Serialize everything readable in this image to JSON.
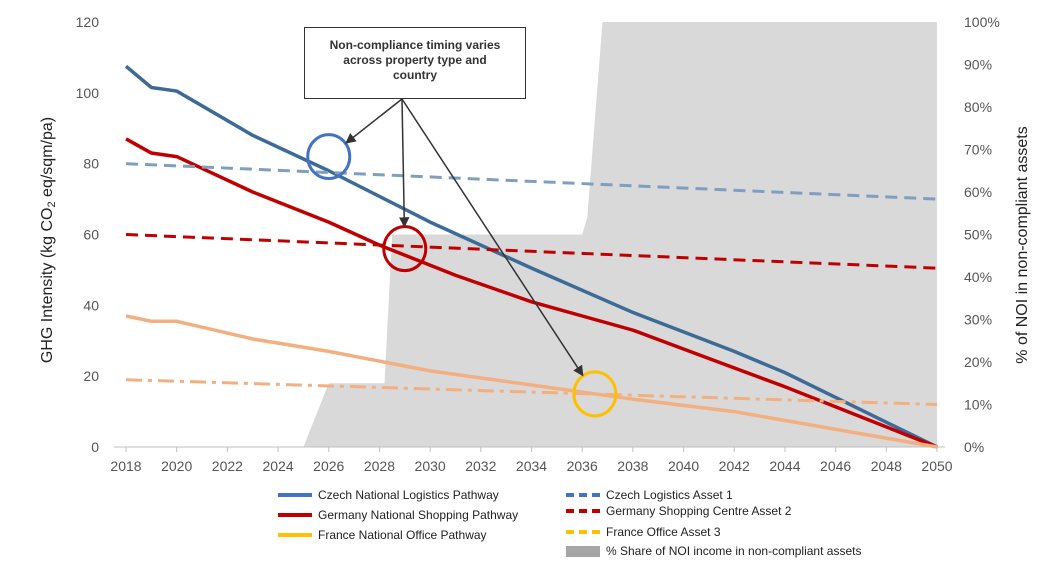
{
  "chart_data": {
    "type": "line",
    "ylabel_left_parts": [
      "GHG Intensity (kg CO",
      "2",
      " eq/sqm/pa)"
    ],
    "ylabel_right": "% of NOI in non-compliant assets",
    "x_ticks": [
      "2018",
      "2020",
      "2022",
      "2024",
      "2026",
      "2028",
      "2030",
      "2032",
      "2034",
      "2036",
      "2038",
      "2040",
      "2042",
      "2044",
      "2046",
      "2048",
      "2050"
    ],
    "y_ticks_left": [
      "0",
      "20",
      "40",
      "60",
      "80",
      "100",
      "120"
    ],
    "y_ticks_right": [
      "0%",
      "10%",
      "20%",
      "30%",
      "40%",
      "50%",
      "60%",
      "70%",
      "80%",
      "90%",
      "100%"
    ],
    "ylim_left": [
      0,
      120
    ],
    "ylim_right": [
      0,
      100
    ],
    "xlim": [
      2018,
      2050
    ],
    "annotation": [
      "Non-compliance timing varies",
      "across property type and",
      "country"
    ],
    "series": [
      {
        "name": "Czech National Logistics Pathway",
        "axis": "left",
        "style": "solid",
        "color": "#3d6a96",
        "x": [
          2018,
          2019,
          2020,
          2023,
          2026,
          2030,
          2034,
          2038,
          2042,
          2044,
          2050
        ],
        "y": [
          107.5,
          101.5,
          100.5,
          88,
          78,
          63.5,
          50.5,
          38,
          27,
          21,
          0
        ]
      },
      {
        "name": "Germany National Shopping Pathway",
        "axis": "left",
        "style": "solid",
        "color": "#c00000",
        "x": [
          2018,
          2019,
          2020,
          2023,
          2026,
          2028,
          2031,
          2034,
          2038,
          2041,
          2044,
          2050
        ],
        "y": [
          87,
          83,
          82,
          72,
          63.5,
          57,
          48.5,
          41,
          33,
          25,
          17,
          0
        ]
      },
      {
        "name": "France National Office Pathway",
        "axis": "left",
        "style": "solid",
        "color": "#f2b080",
        "x": [
          2018,
          2019,
          2020,
          2023,
          2026,
          2030,
          2034,
          2038,
          2042,
          2050
        ],
        "y": [
          37,
          35.5,
          35.5,
          30.5,
          27,
          21.5,
          17.5,
          13.5,
          10,
          0
        ]
      },
      {
        "name": "Czech Logistics Asset 1",
        "axis": "left",
        "style": "dashed",
        "color": "#7f9fbf",
        "x": [
          2018,
          2050
        ],
        "y": [
          80,
          70
        ]
      },
      {
        "name": "Germany Shopping Centre Asset 2",
        "axis": "left",
        "style": "dashed",
        "color": "#c00000",
        "x": [
          2018,
          2050
        ],
        "y": [
          60,
          50.5
        ]
      },
      {
        "name": "France Office Asset 3",
        "axis": "left",
        "style": "dashdot",
        "color": "#f2b080",
        "x": [
          2018,
          2050
        ],
        "y": [
          19,
          12
        ]
      },
      {
        "name": "% Share of NOI income in non-compliant assets",
        "axis": "right",
        "style": "area",
        "color": "#d9d9d9",
        "x": [
          2025,
          2026,
          2028.2,
          2028.5,
          2036,
          2036.2,
          2036.8,
          2050
        ],
        "y": [
          0,
          15,
          15,
          50,
          50,
          54,
          100,
          100
        ]
      }
    ],
    "highlights": [
      {
        "x": 2026,
        "y": 82,
        "color": "#4472c4"
      },
      {
        "x": 2029,
        "y": 56,
        "color": "#c00000"
      },
      {
        "x": 2036.5,
        "y": 15,
        "color": "#ffc000"
      }
    ]
  },
  "legend": [
    {
      "label": "Czech National Logistics Pathway",
      "style": "solid",
      "color": "#4472c4"
    },
    {
      "label": "Germany National Shopping Pathway",
      "style": "solid",
      "color": "#c00000"
    },
    {
      "label": "France National Office Pathway",
      "style": "solid",
      "color": "#ffc000"
    },
    {
      "label": "Czech Logistics Asset 1",
      "style": "dashed",
      "color": "#4472c4"
    },
    {
      "label": "Germany Shopping Centre Asset 2",
      "style": "dashed",
      "color": "#c00000"
    },
    {
      "label": "France Office Asset 3",
      "style": "dashed",
      "color": "#ffc000"
    },
    {
      "label": "% Share of NOI income in non-compliant assets",
      "style": "block",
      "color": "#a6a6a6"
    }
  ]
}
